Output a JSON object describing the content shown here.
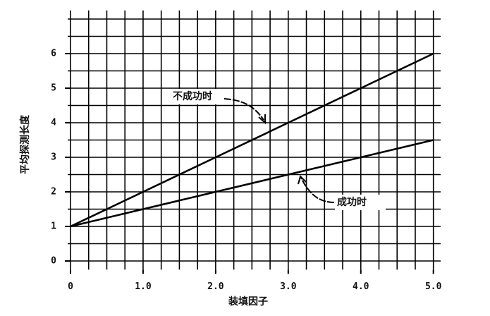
{
  "chart_data": {
    "type": "line",
    "x_label": "装填因子",
    "y_label": "平均探测长度",
    "x": [
      0,
      1,
      2,
      3,
      4,
      5
    ],
    "series": [
      {
        "name": "不成功时",
        "color": "#000000",
        "values": [
          1,
          2,
          3,
          4,
          5,
          6
        ]
      },
      {
        "name": "成功时",
        "color": "#000000",
        "values": [
          1,
          1.5,
          2,
          2.5,
          3,
          3.5
        ]
      }
    ],
    "xlim": [
      0,
      5.1
    ],
    "ylim": [
      -0.25,
      7.25
    ],
    "xticks": [
      0,
      {
        "value": 1,
        "label": "1.0"
      },
      {
        "value": 2,
        "label": "2.0"
      },
      {
        "value": 3,
        "label": "3.0"
      },
      {
        "value": 4,
        "label": "4.0"
      },
      {
        "value": 5,
        "label": "5.0"
      }
    ],
    "yticks": [
      0,
      1,
      2,
      3,
      4,
      5,
      6
    ],
    "grid": true,
    "grid_x_step": 0.25,
    "grid_y_step": 0.5
  }
}
